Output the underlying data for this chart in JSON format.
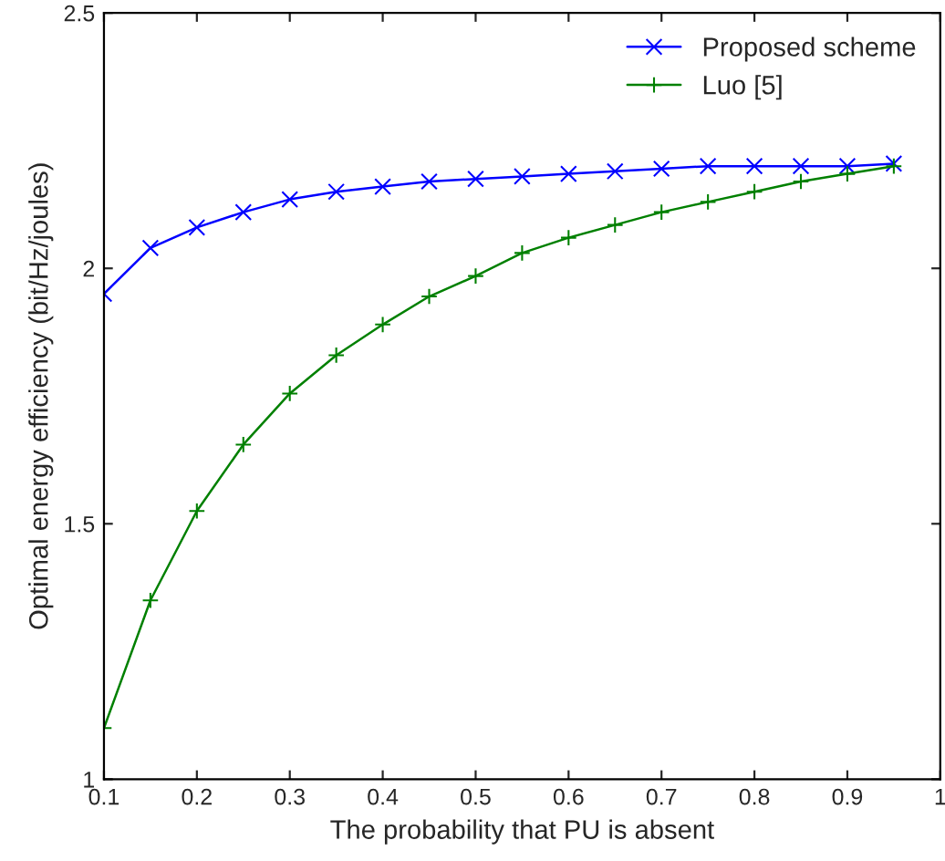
{
  "chart_data": {
    "type": "line",
    "xlabel": "The probability that PU is absent",
    "ylabel": "Optimal energy efficiency (bit/Hz/joules)",
    "x": [
      0.1,
      0.15,
      0.2,
      0.25,
      0.3,
      0.35,
      0.4,
      0.45,
      0.5,
      0.55,
      0.6,
      0.65,
      0.7,
      0.75,
      0.8,
      0.85,
      0.9,
      0.95
    ],
    "series": [
      {
        "name": "Proposed scheme",
        "color": "#0000ff",
        "marker": "cross",
        "values": [
          1.95,
          2.04,
          2.08,
          2.11,
          2.135,
          2.15,
          2.16,
          2.17,
          2.175,
          2.18,
          2.185,
          2.19,
          2.195,
          2.2,
          2.2,
          2.2,
          2.2,
          2.205
        ]
      },
      {
        "name": "Luo [5]",
        "color": "#008000",
        "marker": "plus",
        "values": [
          1.1,
          1.35,
          1.525,
          1.655,
          1.755,
          1.83,
          1.89,
          1.945,
          1.985,
          2.03,
          2.06,
          2.085,
          2.11,
          2.13,
          2.15,
          2.17,
          2.185,
          2.2
        ]
      }
    ],
    "xlim": [
      0.1,
      1
    ],
    "xticks": [
      0.1,
      0.2,
      0.3,
      0.4,
      0.5,
      0.6,
      0.7,
      0.8,
      0.9,
      1
    ],
    "ylim": [
      1,
      2.5
    ],
    "yticks": [
      1,
      1.5,
      2,
      2.5
    ],
    "legend": "top right",
    "grid": false,
    "line_style": "solid"
  }
}
